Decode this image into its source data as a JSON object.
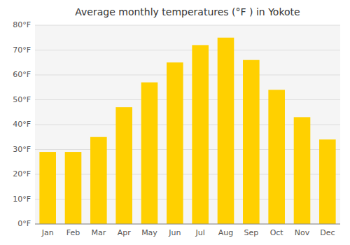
{
  "chart_data": {
    "type": "bar",
    "title": "Average monthly temperatures (°F ) in Yokote",
    "categories": [
      "Jan",
      "Feb",
      "Mar",
      "Apr",
      "May",
      "Jun",
      "Jul",
      "Aug",
      "Sep",
      "Oct",
      "Nov",
      "Dec"
    ],
    "values": [
      29,
      29,
      35,
      47,
      57,
      65,
      72,
      75,
      66,
      54,
      43,
      34
    ],
    "color": "#FFD000",
    "ylim": [
      0,
      80
    ],
    "yticks": [
      {
        "value": 0,
        "label": "0°F"
      },
      {
        "value": 10,
        "label": "10°F"
      },
      {
        "value": 20,
        "label": "20°F"
      },
      {
        "value": 30,
        "label": "30°F"
      },
      {
        "value": 40,
        "label": "40°F"
      },
      {
        "value": 50,
        "label": "50°F"
      },
      {
        "value": 60,
        "label": "60°F"
      },
      {
        "value": 70,
        "label": "70°F"
      },
      {
        "value": 80,
        "label": "80°F"
      }
    ],
    "grid": true
  }
}
